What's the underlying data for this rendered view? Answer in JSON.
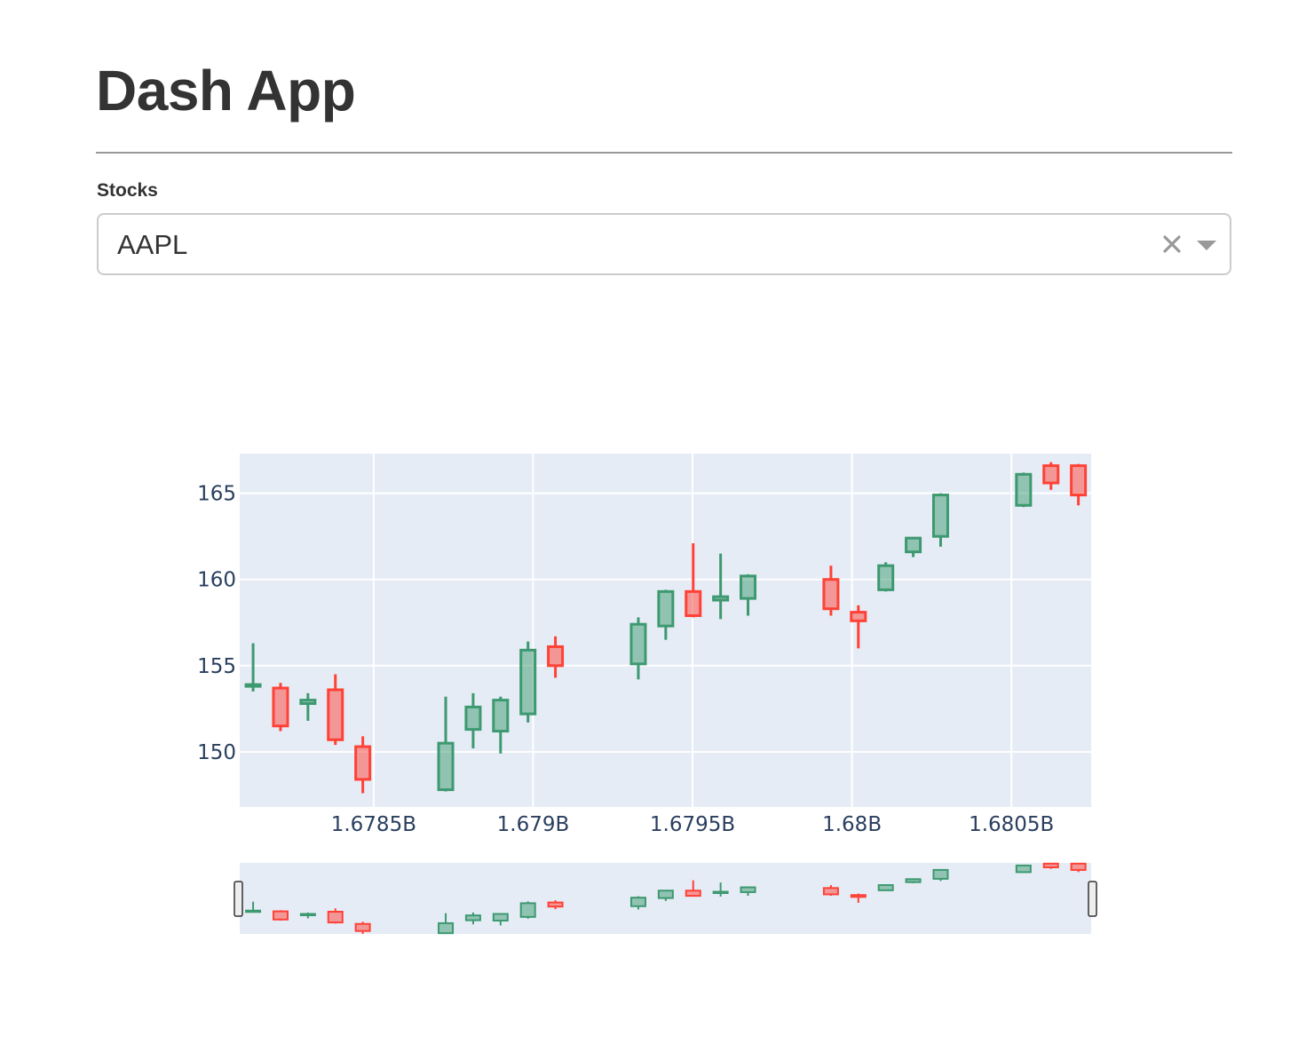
{
  "app": {
    "title": "Dash App"
  },
  "dropdown": {
    "label": "Stocks",
    "value": "AAPL"
  },
  "colors": {
    "increasing": "#3d9970",
    "decreasing": "#ff4136",
    "plot_bg": "#e5ecf6",
    "text": "#2a3f5f"
  },
  "chart_data": {
    "type": "candlestick",
    "title": "",
    "xlabel": "",
    "ylabel": "",
    "xlim": [
      1678080000,
      1680750000
    ],
    "ylim": [
      146.8,
      167.3
    ],
    "x_ticks": [
      {
        "value": 1678500000,
        "label": "1.6785B"
      },
      {
        "value": 1679000000,
        "label": "1.679B"
      },
      {
        "value": 1679500000,
        "label": "1.6795B"
      },
      {
        "value": 1680000000,
        "label": "1.68B"
      },
      {
        "value": 1680500000,
        "label": "1.6805B"
      }
    ],
    "y_ticks": [
      150,
      155,
      160,
      165
    ],
    "grid": true,
    "range_slider": true,
    "candles": [
      {
        "x": 1678122000,
        "open": 153.8,
        "high": 156.3,
        "low": 153.5,
        "close": 153.9
      },
      {
        "x": 1678208000,
        "open": 153.7,
        "high": 154.0,
        "low": 151.2,
        "close": 151.5
      },
      {
        "x": 1678294000,
        "open": 152.8,
        "high": 153.4,
        "low": 151.8,
        "close": 153.0
      },
      {
        "x": 1678380000,
        "open": 153.6,
        "high": 154.5,
        "low": 150.4,
        "close": 150.7
      },
      {
        "x": 1678466000,
        "open": 150.3,
        "high": 150.9,
        "low": 147.6,
        "close": 148.4
      },
      {
        "x": 1678726000,
        "open": 147.8,
        "high": 153.2,
        "low": 147.7,
        "close": 150.5
      },
      {
        "x": 1678812000,
        "open": 151.3,
        "high": 153.4,
        "low": 150.2,
        "close": 152.6
      },
      {
        "x": 1678898000,
        "open": 151.2,
        "high": 153.2,
        "low": 149.9,
        "close": 153.0
      },
      {
        "x": 1678984000,
        "open": 152.2,
        "high": 156.4,
        "low": 151.7,
        "close": 155.9
      },
      {
        "x": 1679070000,
        "open": 156.1,
        "high": 156.7,
        "low": 154.3,
        "close": 155.0
      },
      {
        "x": 1679330000,
        "open": 155.1,
        "high": 157.8,
        "low": 154.2,
        "close": 157.4
      },
      {
        "x": 1679416000,
        "open": 157.3,
        "high": 159.4,
        "low": 156.5,
        "close": 159.3
      },
      {
        "x": 1679502000,
        "open": 159.3,
        "high": 162.1,
        "low": 157.8,
        "close": 157.9
      },
      {
        "x": 1679588000,
        "open": 158.8,
        "high": 161.5,
        "low": 157.7,
        "close": 159.0
      },
      {
        "x": 1679674000,
        "open": 158.9,
        "high": 160.3,
        "low": 157.9,
        "close": 160.2
      },
      {
        "x": 1679934000,
        "open": 160.0,
        "high": 160.8,
        "low": 157.9,
        "close": 158.3
      },
      {
        "x": 1680020000,
        "open": 158.1,
        "high": 158.5,
        "low": 156.0,
        "close": 157.6
      },
      {
        "x": 1680106000,
        "open": 159.4,
        "high": 161.0,
        "low": 159.3,
        "close": 160.8
      },
      {
        "x": 1680192000,
        "open": 161.6,
        "high": 162.4,
        "low": 161.3,
        "close": 162.4
      },
      {
        "x": 1680278000,
        "open": 162.5,
        "high": 165.0,
        "low": 161.9,
        "close": 164.9
      },
      {
        "x": 1680538000,
        "open": 164.3,
        "high": 166.2,
        "low": 164.2,
        "close": 166.1
      },
      {
        "x": 1680624000,
        "open": 166.6,
        "high": 166.8,
        "low": 165.2,
        "close": 165.6
      },
      {
        "x": 1680710000,
        "open": 166.6,
        "high": 166.7,
        "low": 164.3,
        "close": 164.9
      }
    ]
  }
}
